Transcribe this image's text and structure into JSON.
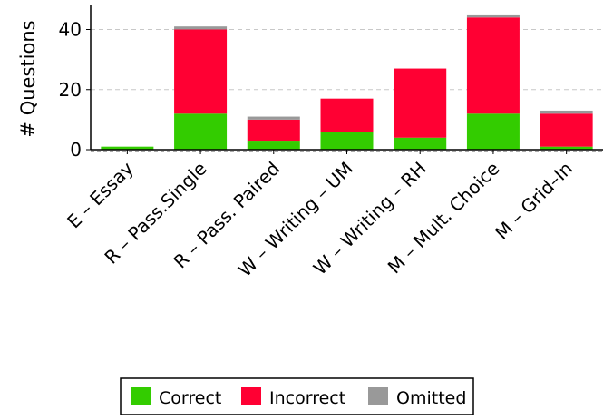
{
  "chart_data": {
    "type": "bar",
    "stacked": true,
    "categories": [
      "E – Essay",
      "R – Pass.Single",
      "R – Pass. Paired",
      "W – Writing  – UM",
      "W – Writing  – RH",
      "M – Mult. Choice",
      "M – Grid–In"
    ],
    "series": [
      {
        "name": "Correct",
        "color": "#33cc00",
        "values": [
          1,
          12,
          3,
          6,
          4,
          12,
          1
        ]
      },
      {
        "name": "Incorrect",
        "color": "#ff0033",
        "values": [
          0,
          28,
          7,
          11,
          23,
          32,
          11
        ]
      },
      {
        "name": "Omitted",
        "color": "#999999",
        "values": [
          0,
          1,
          1,
          0,
          0,
          1,
          1
        ]
      }
    ],
    "ylabel": "# Questions",
    "xlabel": "",
    "ylim": [
      0,
      48
    ],
    "yticks": [
      0,
      20,
      40
    ],
    "grid": true,
    "legend": "bottom"
  }
}
